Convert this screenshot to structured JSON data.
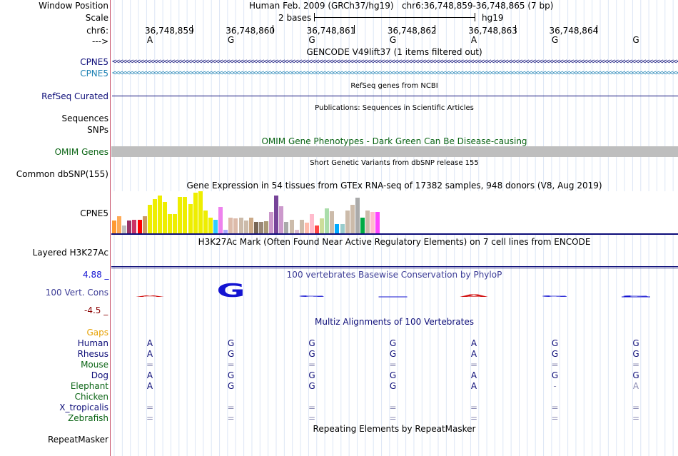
{
  "header": {
    "window_position_label": "Window Position",
    "window_position_value": "Human Feb. 2009 (GRCh37/hg19)   chr6:36,748,859-36,748,865 (7 bp)",
    "scale_label": "Scale",
    "scale_value": "2 bases",
    "assembly": "hg19",
    "chrom_label": "chr6:",
    "strand_label": "--->",
    "positions": [
      "36,748,859",
      "36,748,860",
      "36,748,861",
      "36,748,862",
      "36,748,863",
      "36,748,864"
    ],
    "bases": [
      "A",
      "G",
      "G",
      "G",
      "A",
      "G",
      "G"
    ]
  },
  "tracks": {
    "gencode": {
      "title": "GENCODE V49lift37 (1 items filtered out)",
      "items": [
        "CPNE5",
        "CPNE5"
      ],
      "colors": [
        "#0c0c78",
        "#1e82b4"
      ]
    },
    "refseq": {
      "label": "RefSeq Curated",
      "title": "RefSeq genes from NCBI",
      "color": "#0c0c78"
    },
    "publications": {
      "title": "Publications: Sequences in Scientific Articles",
      "label_sequences": "Sequences",
      "label_snps": "SNPs"
    },
    "omim": {
      "label": "OMIM Genes",
      "title": "OMIM Gene Phenotypes - Dark Green Can Be Disease-causing",
      "color": "#0a6414",
      "bar_color": "#bebebe"
    },
    "dbsnp": {
      "label": "Common dbSNP(155)",
      "title": "Short Genetic Variants from dbSNP release 155"
    },
    "gtex": {
      "label": "CPNE5",
      "title": "Gene Expression in 54 tissues from GTEx RNA-seq of 17382 samples, 948 donors (V8, Aug 2019)",
      "bars": [
        {
          "v": 0.3,
          "c": "#ff9933"
        },
        {
          "v": 0.4,
          "c": "#ffaa55"
        },
        {
          "v": 0.18,
          "c": "#c0c0c0"
        },
        {
          "v": 0.3,
          "c": "#993366"
        },
        {
          "v": 0.33,
          "c": "#cc3366"
        },
        {
          "v": 0.32,
          "c": "#ff0000"
        },
        {
          "v": 0.4,
          "c": "#cc9966"
        },
        {
          "v": 0.68,
          "c": "#eeee00"
        },
        {
          "v": 0.82,
          "c": "#eeee00"
        },
        {
          "v": 0.9,
          "c": "#eeee00"
        },
        {
          "v": 0.75,
          "c": "#eeee00"
        },
        {
          "v": 0.45,
          "c": "#eeee00"
        },
        {
          "v": 0.45,
          "c": "#eeee00"
        },
        {
          "v": 0.87,
          "c": "#eeee00"
        },
        {
          "v": 0.87,
          "c": "#eeee00"
        },
        {
          "v": 0.7,
          "c": "#eeee00"
        },
        {
          "v": 0.97,
          "c": "#eeee00"
        },
        {
          "v": 1.0,
          "c": "#eeee00"
        },
        {
          "v": 0.55,
          "c": "#eeee00"
        },
        {
          "v": 0.37,
          "c": "#eeee00"
        },
        {
          "v": 0.32,
          "c": "#33ccff"
        },
        {
          "v": 0.62,
          "c": "#ee82ee"
        },
        {
          "v": 0.08,
          "c": "#aaaaff"
        },
        {
          "v": 0.37,
          "c": "#ddbbaa"
        },
        {
          "v": 0.35,
          "c": "#ddbbaa"
        },
        {
          "v": 0.37,
          "c": "#ccbbaa"
        },
        {
          "v": 0.3,
          "c": "#ccbbaa"
        },
        {
          "v": 0.37,
          "c": "#ccaa88"
        },
        {
          "v": 0.27,
          "c": "#776655"
        },
        {
          "v": 0.27,
          "c": "#998877"
        },
        {
          "v": 0.28,
          "c": "#aa9977"
        },
        {
          "v": 0.5,
          "c": "#cc99cc"
        },
        {
          "v": 0.9,
          "c": "#774499"
        },
        {
          "v": 0.65,
          "c": "#cc99cc"
        },
        {
          "v": 0.27,
          "c": "#aaaaaa"
        },
        {
          "v": 0.33,
          "c": "#ccbbaa"
        },
        {
          "v": 0.08,
          "c": "#ddbbcc"
        },
        {
          "v": 0.33,
          "c": "#ccbbaa"
        },
        {
          "v": 0.25,
          "c": "#ffbbaa"
        },
        {
          "v": 0.45,
          "c": "#ffbbcc"
        },
        {
          "v": 0.18,
          "c": "#ff4444"
        },
        {
          "v": 0.35,
          "c": "#ccdd99"
        },
        {
          "v": 0.6,
          "c": "#aaddaa"
        },
        {
          "v": 0.52,
          "c": "#ccbbaa"
        },
        {
          "v": 0.22,
          "c": "#00aaff"
        },
        {
          "v": 0.22,
          "c": "#99cccc"
        },
        {
          "v": 0.55,
          "c": "#ccbbaa"
        },
        {
          "v": 0.68,
          "c": "#ccbbaa"
        },
        {
          "v": 0.85,
          "c": "#aaaaaa"
        },
        {
          "v": 0.37,
          "c": "#00aa44"
        },
        {
          "v": 0.55,
          "c": "#ccbbaa"
        },
        {
          "v": 0.5,
          "c": "#ffbbcc"
        },
        {
          "v": 0.5,
          "c": "#ff44ff"
        }
      ]
    },
    "h3k27ac": {
      "label": "Layered H3K27Ac",
      "title": "H3K27Ac Mark (Often Found Near Active Regulatory Elements) on 7 cell lines from ENCODE"
    },
    "phylop": {
      "label": "100 Vert. Cons",
      "title": "100 vertebrates Basewise Conservation by PhyloP",
      "max": "4.88 _",
      "min": "-4.5 _",
      "scores": [
        -0.3,
        4.8,
        0.5,
        0,
        -0.9,
        0.5,
        0.1
      ],
      "pos_color": "#1414d2",
      "neg_color": "#d21414"
    },
    "multiz": {
      "title": "Multiz Alignments of 100 Vertebrates",
      "gaps_label": "Gaps",
      "species": [
        {
          "name": "Human",
          "color": "#0c0c78",
          "seq": [
            "A",
            "G",
            "G",
            "G",
            "A",
            "G",
            "G"
          ]
        },
        {
          "name": "Rhesus",
          "color": "#0c0c78",
          "seq": [
            "A",
            "G",
            "G",
            "G",
            "A",
            "G",
            "G"
          ]
        },
        {
          "name": "Mouse",
          "color": "#0a6414",
          "seq": [
            "=",
            "=",
            "=",
            "=",
            "=",
            "=",
            "="
          ]
        },
        {
          "name": "Dog",
          "color": "#0c0c78",
          "seq": [
            "A",
            "G",
            "G",
            "G",
            "A",
            "G",
            "G"
          ]
        },
        {
          "name": "Elephant",
          "color": "#0a6414",
          "seq": [
            "A",
            "G",
            "G",
            "G",
            "A",
            "-",
            "A"
          ]
        },
        {
          "name": "Chicken",
          "color": "#0a6414",
          "seq": [
            "",
            "",
            "",
            "",
            "",
            "",
            ""
          ]
        },
        {
          "name": "X_tropicalis",
          "color": "#0c0c78",
          "seq": [
            "=",
            "=",
            "=",
            "=",
            "=",
            "=",
            "="
          ]
        },
        {
          "name": "Zebrafish",
          "color": "#0a6414",
          "seq": [
            "=",
            "=",
            "=",
            "=",
            "=",
            "=",
            "="
          ]
        }
      ]
    },
    "repeatmasker": {
      "label": "RepeatMasker",
      "title": "Repeating Elements by RepeatMasker"
    }
  }
}
